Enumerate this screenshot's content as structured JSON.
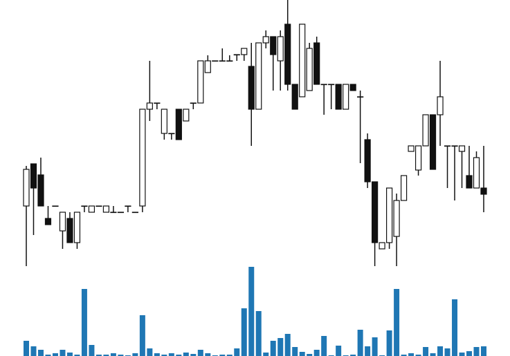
{
  "chart_data": [
    {
      "type": "candlestick",
      "open": [
        92,
        153,
        137,
        74,
        92,
        56,
        74,
        39,
        92,
        83,
        92,
        83,
        83,
        83,
        92,
        83,
        92,
        232,
        241,
        197,
        197,
        232,
        215,
        241,
        241,
        285,
        302,
        302,
        302,
        311,
        311,
        294,
        232,
        328,
        337,
        302,
        355,
        268,
        250,
        259,
        328,
        268,
        268,
        268,
        232,
        268,
        250,
        188,
        127,
        30,
        39,
        48,
        100,
        171,
        144,
        179,
        224,
        224,
        179,
        179,
        171,
        136,
        118,
        118
      ],
      "high": [
        150,
        153,
        162,
        92,
        92,
        83,
        83,
        83,
        92,
        92,
        92,
        92,
        92,
        83,
        92,
        83,
        232,
        302,
        241,
        232,
        197,
        232,
        232,
        241,
        302,
        310,
        302,
        320,
        310,
        311,
        320,
        328,
        328,
        346,
        337,
        346,
        390,
        268,
        355,
        328,
        337,
        268,
        268,
        268,
        268,
        268,
        259,
        197,
        127,
        39,
        118,
        110,
        136,
        179,
        179,
        224,
        224,
        302,
        179,
        179,
        179,
        179,
        171,
        179
      ],
      "low": [
        5,
        50,
        92,
        65,
        92,
        30,
        39,
        30,
        83,
        83,
        92,
        83,
        83,
        83,
        83,
        83,
        83,
        215,
        232,
        188,
        188,
        188,
        215,
        232,
        241,
        285,
        302,
        302,
        302,
        302,
        302,
        179,
        232,
        320,
        259,
        259,
        259,
        232,
        250,
        259,
        268,
        224,
        232,
        232,
        232,
        259,
        154,
        118,
        5,
        30,
        30,
        5,
        100,
        171,
        136,
        179,
        145,
        179,
        118,
        100,
        118,
        118,
        118,
        83
      ],
      "close": [
        145,
        118,
        92,
        65,
        92,
        83,
        39,
        83,
        92,
        92,
        92,
        92,
        83,
        83,
        92,
        83,
        232,
        241,
        241,
        232,
        197,
        188,
        232,
        241,
        302,
        302,
        302,
        302,
        302,
        311,
        320,
        232,
        328,
        337,
        311,
        337,
        268,
        232,
        355,
        320,
        268,
        268,
        268,
        232,
        268,
        259,
        250,
        127,
        39,
        39,
        118,
        100,
        136,
        179,
        179,
        224,
        145,
        250,
        179,
        179,
        179,
        118,
        162,
        109
      ],
      "ylim": [
        0,
        390
      ],
      "up_color": "#ffffff",
      "down_color": "#111111",
      "edge_color": "#111111"
    },
    {
      "type": "bar",
      "values": [
        22,
        14,
        9,
        2,
        4,
        9,
        5,
        2,
        97,
        16,
        2,
        2,
        4,
        2,
        1,
        4,
        59,
        11,
        4,
        2,
        4,
        2,
        5,
        3,
        9,
        4,
        1,
        2,
        2,
        11,
        69,
        129,
        65,
        5,
        22,
        26,
        32,
        13,
        6,
        3,
        9,
        29,
        1,
        15,
        1,
        2,
        38,
        14,
        27,
        1,
        37,
        97,
        2,
        4,
        2,
        13,
        4,
        14,
        11,
        82,
        5,
        7,
        13,
        14
      ],
      "color": "#1f77b4",
      "ylim": [
        0,
        130
      ]
    }
  ]
}
